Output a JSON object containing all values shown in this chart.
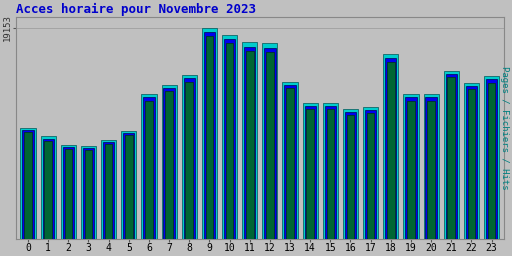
{
  "title": "Acces horaire pour Novembre 2023",
  "title_color": "#0000cc",
  "title_fontsize": 9,
  "background_color": "#c0c0c0",
  "plot_bg_color": "#c0c0c0",
  "ylabel": "Pages / Fichiers / Hits",
  "ylabel_color": "#008080",
  "ytick_label": "19153",
  "hours": [
    0,
    1,
    2,
    3,
    4,
    5,
    6,
    7,
    8,
    9,
    10,
    11,
    12,
    13,
    14,
    15,
    16,
    17,
    18,
    19,
    20,
    21,
    22,
    23
  ],
  "hits": [
    0.525,
    0.485,
    0.445,
    0.44,
    0.47,
    0.51,
    0.685,
    0.73,
    0.775,
    1.0,
    0.965,
    0.93,
    0.925,
    0.745,
    0.645,
    0.645,
    0.615,
    0.625,
    0.875,
    0.685,
    0.685,
    0.795,
    0.74,
    0.77
  ],
  "fichiers": [
    0.515,
    0.475,
    0.435,
    0.43,
    0.46,
    0.5,
    0.67,
    0.715,
    0.76,
    0.98,
    0.945,
    0.91,
    0.905,
    0.73,
    0.63,
    0.63,
    0.6,
    0.61,
    0.855,
    0.67,
    0.67,
    0.78,
    0.725,
    0.755
  ],
  "pages": [
    0.505,
    0.465,
    0.425,
    0.42,
    0.45,
    0.49,
    0.655,
    0.7,
    0.745,
    0.96,
    0.925,
    0.89,
    0.885,
    0.715,
    0.615,
    0.615,
    0.585,
    0.595,
    0.835,
    0.655,
    0.655,
    0.765,
    0.71,
    0.74
  ],
  "bar_color_hits": "#00cccc",
  "bar_color_fichiers": "#0000ee",
  "bar_color_pages": "#006633",
  "bar_edge_hits": "#005555",
  "bar_edge_fichiers": "#000055",
  "bar_edge_pages": "#003311",
  "ylim_max": 1.05,
  "bar_width": 0.75
}
